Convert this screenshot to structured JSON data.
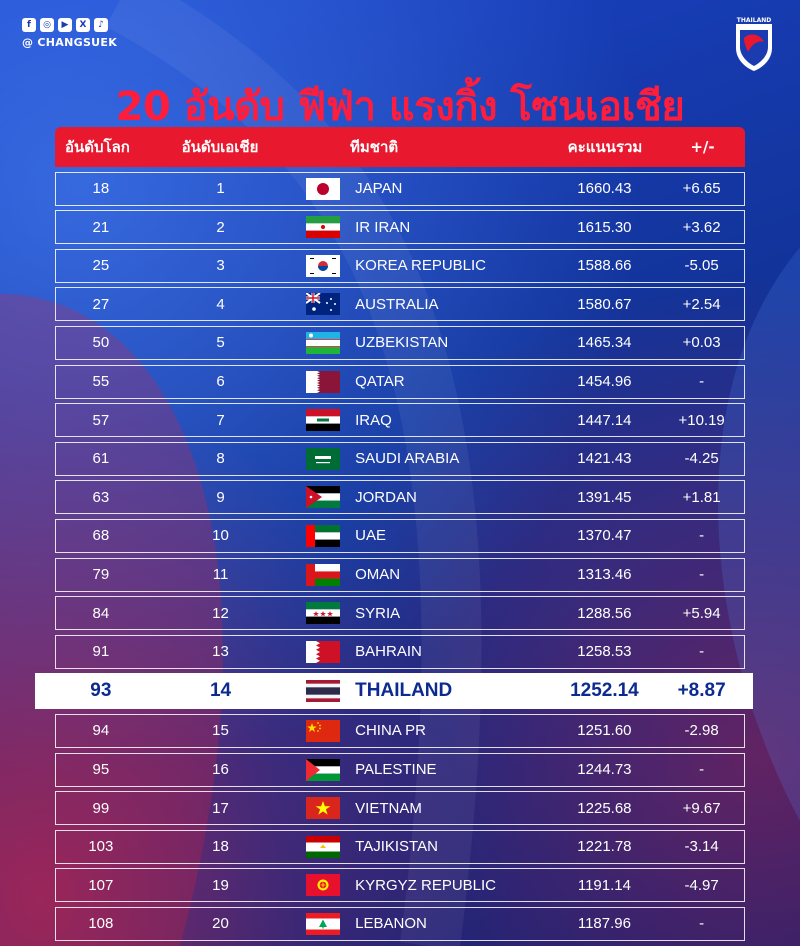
{
  "brand": {
    "handle": "@ CHANGSUEK",
    "crest_label": "THAILAND",
    "social_icons": [
      "f",
      "◎",
      "▶",
      "X",
      "♪"
    ]
  },
  "title": "20 อันดับ ฟีฟ่า แรงกิ้ง โซนเอเชีย",
  "colors": {
    "title": "#ff1d3b",
    "header_bg": "#e8182f",
    "background": "#123399",
    "highlight_text": "#0c2a8f"
  },
  "table": {
    "headers": {
      "world_rank": "อันดับโลก",
      "asia_rank": "อันดับเอเชีย",
      "team": "ทีมชาติ",
      "points": "คะแนนรวม",
      "diff": "+/-"
    },
    "rows": [
      {
        "world": "18",
        "asia": "1",
        "team": "JAPAN",
        "points": "1660.43",
        "diff": "+6.65",
        "flag": "japan"
      },
      {
        "world": "21",
        "asia": "2",
        "team": "IR IRAN",
        "points": "1615.30",
        "diff": "+3.62",
        "flag": "iran"
      },
      {
        "world": "25",
        "asia": "3",
        "team": "KOREA REPUBLIC",
        "points": "1588.66",
        "diff": "-5.05",
        "flag": "korea"
      },
      {
        "world": "27",
        "asia": "4",
        "team": "AUSTRALIA",
        "points": "1580.67",
        "diff": "+2.54",
        "flag": "australia"
      },
      {
        "world": "50",
        "asia": "5",
        "team": "UZBEKISTAN",
        "points": "1465.34",
        "diff": "+0.03",
        "flag": "uzbekistan"
      },
      {
        "world": "55",
        "asia": "6",
        "team": "QATAR",
        "points": "1454.96",
        "diff": "-",
        "flag": "qatar"
      },
      {
        "world": "57",
        "asia": "7",
        "team": "IRAQ",
        "points": "1447.14",
        "diff": "+10.19",
        "flag": "iraq"
      },
      {
        "world": "61",
        "asia": "8",
        "team": "SAUDI ARABIA",
        "points": "1421.43",
        "diff": "-4.25",
        "flag": "saudi"
      },
      {
        "world": "63",
        "asia": "9",
        "team": "JORDAN",
        "points": "1391.45",
        "diff": "+1.81",
        "flag": "jordan"
      },
      {
        "world": "68",
        "asia": "10",
        "team": "UAE",
        "points": "1370.47",
        "diff": "-",
        "flag": "uae"
      },
      {
        "world": "79",
        "asia": "11",
        "team": "OMAN",
        "points": "1313.46",
        "diff": "-",
        "flag": "oman"
      },
      {
        "world": "84",
        "asia": "12",
        "team": "SYRIA",
        "points": "1288.56",
        "diff": "+5.94",
        "flag": "syria"
      },
      {
        "world": "91",
        "asia": "13",
        "team": "BAHRAIN",
        "points": "1258.53",
        "diff": "-",
        "flag": "bahrain"
      },
      {
        "world": "93",
        "asia": "14",
        "team": "THAILAND",
        "points": "1252.14",
        "diff": "+8.87",
        "flag": "thailand",
        "highlight": true
      },
      {
        "world": "94",
        "asia": "15",
        "team": "CHINA PR",
        "points": "1251.60",
        "diff": "-2.98",
        "flag": "china"
      },
      {
        "world": "95",
        "asia": "16",
        "team": "PALESTINE",
        "points": "1244.73",
        "diff": "-",
        "flag": "palestine"
      },
      {
        "world": "99",
        "asia": "17",
        "team": "VIETNAM",
        "points": "1225.68",
        "diff": "+9.67",
        "flag": "vietnam"
      },
      {
        "world": "103",
        "asia": "18",
        "team": "TAJIKISTAN",
        "points": "1221.78",
        "diff": "-3.14",
        "flag": "tajikistan"
      },
      {
        "world": "107",
        "asia": "19",
        "team": "KYRGYZ REPUBLIC",
        "points": "1191.14",
        "diff": "-4.97",
        "flag": "kyrgyz"
      },
      {
        "world": "108",
        "asia": "20",
        "team": "LEBANON",
        "points": "1187.96",
        "diff": "-",
        "flag": "lebanon"
      }
    ]
  }
}
